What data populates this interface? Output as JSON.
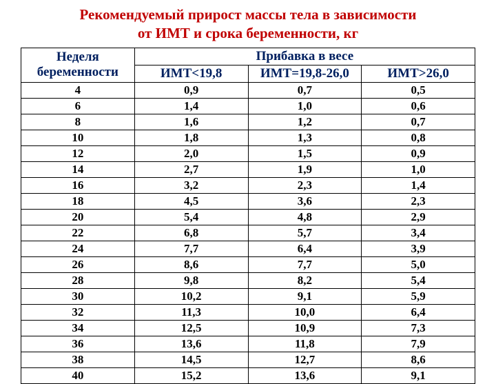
{
  "title_line1": "Рекомендуемый прирост массы тела в зависимости",
  "title_line2": "от ИМТ и срока беременности, кг",
  "header": {
    "col1_line1": "Неделя",
    "col1_line2": "беременности",
    "col_group": "Прибавка в весе",
    "sub1": "ИМТ<19,8",
    "sub2": "ИМТ=19,8-26,0",
    "sub3": "ИМТ>26,0"
  },
  "columns": [
    "week",
    "low",
    "mid",
    "high"
  ],
  "rows": [
    [
      "4",
      "0,9",
      "0,7",
      "0,5"
    ],
    [
      "6",
      "1,4",
      "1,0",
      "0,6"
    ],
    [
      "8",
      "1,6",
      "1,2",
      "0,7"
    ],
    [
      "10",
      "1,8",
      "1,3",
      "0,8"
    ],
    [
      "12",
      "2,0",
      "1,5",
      "0,9"
    ],
    [
      "14",
      "2,7",
      "1,9",
      "1,0"
    ],
    [
      "16",
      "3,2",
      "2,3",
      "1,4"
    ],
    [
      "18",
      "4,5",
      "3,6",
      "2,3"
    ],
    [
      "20",
      "5,4",
      "4,8",
      "2,9"
    ],
    [
      "22",
      "6,8",
      "5,7",
      "3,4"
    ],
    [
      "24",
      "7,7",
      "6,4",
      "3,9"
    ],
    [
      "26",
      "8,6",
      "7,7",
      "5,0"
    ],
    [
      "28",
      "9,8",
      "8,2",
      "5,4"
    ],
    [
      "30",
      "10,2",
      "9,1",
      "5,9"
    ],
    [
      "32",
      "11,3",
      "10,0",
      "6,4"
    ],
    [
      "34",
      "12,5",
      "10,9",
      "7,3"
    ],
    [
      "36",
      "13,6",
      "11,8",
      "7,9"
    ],
    [
      "38",
      "14,5",
      "12,7",
      "8,6"
    ],
    [
      "40",
      "15,2",
      "13,6",
      "9,1"
    ]
  ],
  "styles": {
    "title_color": "#c00000",
    "header_color": "#002060",
    "data_color": "#000000",
    "border_color": "#000000",
    "background": "#ffffff",
    "title_fontsize": 21,
    "header_fontsize": 19,
    "data_fontsize": 17
  }
}
